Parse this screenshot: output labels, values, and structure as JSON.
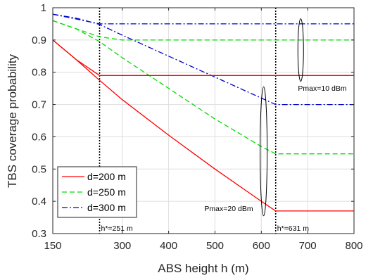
{
  "chart_data": {
    "type": "line",
    "title": "",
    "xlabel": "ABS height h (m)",
    "ylabel": "TBS coverage probability",
    "xlim": [
      150,
      800
    ],
    "ylim": [
      0.3,
      1.0
    ],
    "xticks": [
      150,
      300,
      400,
      500,
      600,
      700,
      800
    ],
    "yticks": [
      0.3,
      0.4,
      0.5,
      0.6,
      0.7,
      0.8,
      0.9,
      1.0
    ],
    "xtick_labels": [
      "150",
      "300",
      "400",
      "500",
      "600",
      "700",
      "800"
    ],
    "ytick_labels": [
      "0.3",
      "0.4",
      "0.5",
      "0.6",
      "0.7",
      "0.8",
      "0.9",
      "1"
    ],
    "grid": true,
    "legend_position": "bottom-left",
    "series": [
      {
        "name": "d=200 m",
        "color": "#ff0000",
        "dash": "solid",
        "group": "Pmax=20 dBm",
        "x": [
          150,
          200,
          251,
          300,
          400,
          500,
          600,
          631,
          800
        ],
        "y": [
          0.9,
          0.84,
          0.775,
          0.715,
          0.605,
          0.5,
          0.4,
          0.37,
          0.37
        ]
      },
      {
        "name": "d=250 m",
        "color": "#00dd00",
        "dash": "dashed",
        "group": "Pmax=20 dBm",
        "x": [
          150,
          200,
          251,
          300,
          400,
          500,
          600,
          631,
          800
        ],
        "y": [
          0.96,
          0.935,
          0.895,
          0.845,
          0.75,
          0.655,
          0.57,
          0.547,
          0.547
        ]
      },
      {
        "name": "d=300 m",
        "color": "#0000cc",
        "dash": "dashdot",
        "group": "Pmax=20 dBm",
        "x": [
          150,
          200,
          251,
          300,
          400,
          500,
          600,
          631,
          800
        ],
        "y": [
          0.98,
          0.968,
          0.948,
          0.915,
          0.85,
          0.785,
          0.72,
          0.7,
          0.7
        ]
      },
      {
        "name": "",
        "color": "#ff0000",
        "dash": "solid",
        "group": "Pmax=10 dBm",
        "x": [
          150,
          200,
          251,
          800
        ],
        "y": [
          0.9,
          0.84,
          0.79,
          0.79
        ]
      },
      {
        "name": "",
        "color": "#00dd00",
        "dash": "dashed",
        "group": "Pmax=10 dBm",
        "x": [
          150,
          200,
          251,
          300,
          800
        ],
        "y": [
          0.96,
          0.935,
          0.91,
          0.9,
          0.9
        ]
      },
      {
        "name": "",
        "color": "#0000cc",
        "dash": "dashdot",
        "group": "Pmax=10 dBm",
        "x": [
          150,
          251,
          800
        ],
        "y": [
          0.98,
          0.95,
          0.95
        ]
      }
    ],
    "vlines": [
      {
        "x": 251,
        "label": "h*=251 m"
      },
      {
        "x": 631,
        "label": "h*=631 m"
      }
    ],
    "annotations": [
      {
        "text": "Pmax=10 dBm",
        "x": 685,
        "y": 0.9
      },
      {
        "text": "Pmax=20 dBm",
        "x": 605,
        "y": 0.56
      }
    ]
  }
}
